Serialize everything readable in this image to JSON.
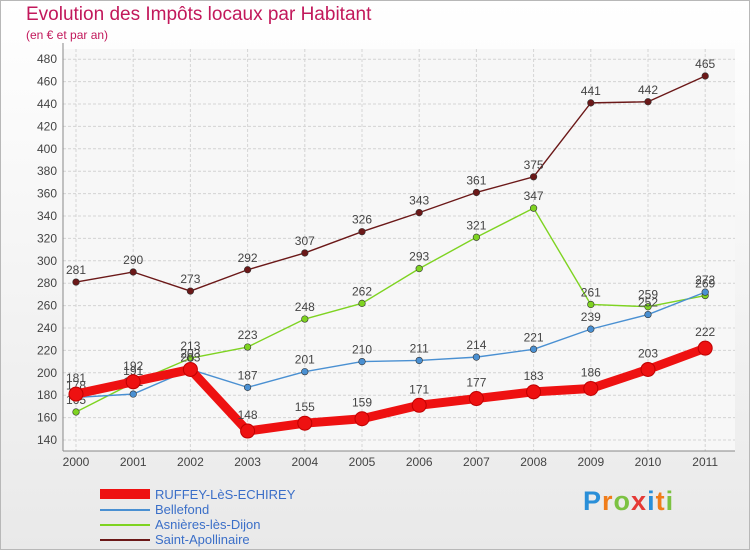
{
  "chart_data": {
    "type": "line",
    "title": "Evolution des Impôts locaux par Habitant",
    "subtitle": "(en € et par an)",
    "categories": [
      "2000",
      "2001",
      "2002",
      "2003",
      "2004",
      "2005",
      "2006",
      "2007",
      "2008",
      "2009",
      "2010",
      "2011"
    ],
    "ylim": [
      140,
      480
    ],
    "yticks": [
      140,
      160,
      180,
      200,
      220,
      240,
      260,
      280,
      300,
      320,
      340,
      360,
      380,
      400,
      420,
      440,
      460,
      480
    ],
    "grid": true,
    "legend_position": "bottom-left",
    "series": [
      {
        "name": "RUFFEY-LèS-ECHIREY",
        "color": "#ee1111",
        "emphasis": true,
        "values": [
          181,
          192,
          203,
          148,
          155,
          159,
          171,
          177,
          183,
          186,
          203,
          222
        ]
      },
      {
        "name": "Bellefond",
        "color": "#4a90d2",
        "emphasis": false,
        "values": [
          178,
          181,
          203,
          187,
          201,
          210,
          211,
          214,
          221,
          239,
          252,
          272
        ]
      },
      {
        "name": "Asnières-lès-Dijon",
        "color": "#7ed321",
        "emphasis": false,
        "values": [
          165,
          191,
          213,
          223,
          248,
          262,
          293,
          321,
          347,
          261,
          259,
          269
        ]
      },
      {
        "name": "Saint-Apollinaire",
        "color": "#6b1818",
        "emphasis": false,
        "values": [
          281,
          290,
          273,
          292,
          307,
          326,
          343,
          361,
          375,
          441,
          442,
          465
        ]
      }
    ]
  },
  "brand": {
    "text": "Proxiti",
    "colors": [
      "#2a8fd8",
      "#f07d1a",
      "#7cc242",
      "#e53935",
      "#2a8fd8",
      "#f07d1a",
      "#7cc242"
    ]
  }
}
